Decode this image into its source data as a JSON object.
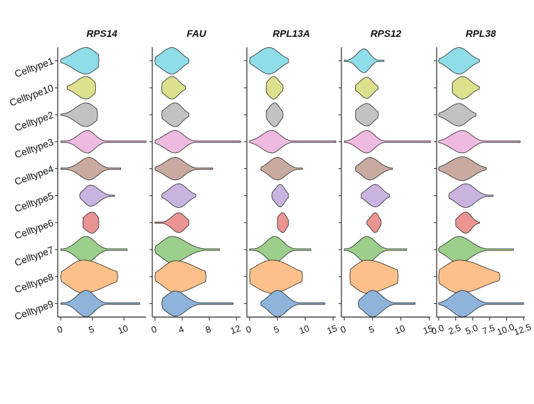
{
  "chart_data": {
    "type": "violin",
    "celltypes": [
      "Celltype1",
      "Celltype10",
      "Celltype2",
      "Celltype3",
      "Celltype4",
      "Celltype5",
      "Celltype6",
      "Celltype7",
      "Celltype8",
      "Celltype9"
    ],
    "colors": [
      "#8fdde8",
      "#dde08c",
      "#c2c2c2",
      "#eebae0",
      "#c9aaa0",
      "#c9b4e0",
      "#eb9494",
      "#9ccf8c",
      "#fdc08a",
      "#8fb4dc"
    ],
    "genes": [
      {
        "name": "RPS14",
        "xlim": [
          -0.5,
          13.5
        ],
        "ticks": [
          0,
          5,
          10
        ],
        "tick_labels": [
          "0",
          "5",
          "10"
        ],
        "violins": [
          {
            "min": 0,
            "max": 6,
            "mode": 4,
            "left": 2.0,
            "right": 1.6,
            "width": 1.0
          },
          {
            "min": 1,
            "max": 5.5,
            "mode": 4,
            "left": 1.5,
            "right": 1.2,
            "width": 0.85
          },
          {
            "min": 0,
            "max": 5.8,
            "mode": 4,
            "left": 1.6,
            "right": 1.4,
            "width": 0.9
          },
          {
            "min": 0,
            "max": 13.5,
            "mode": 4.2,
            "left": 1.4,
            "right": 1.2,
            "width": 0.85
          },
          {
            "min": 0,
            "max": 9.5,
            "mode": 4.5,
            "left": 1.5,
            "right": 1.3,
            "width": 0.85
          },
          {
            "min": 3,
            "max": 8.5,
            "mode": 4.7,
            "left": 1.0,
            "right": 1.3,
            "width": 0.8
          },
          {
            "min": 3.5,
            "max": 6,
            "mode": 5,
            "left": 1.2,
            "right": 0.8,
            "width": 0.8
          },
          {
            "min": 0,
            "max": 10.5,
            "mode": 4,
            "left": 1.5,
            "right": 1.4,
            "width": 1.0
          },
          {
            "min": 0,
            "max": 9,
            "mode": 3.5,
            "left": 2.2,
            "right": 3.5,
            "width": 1.25
          },
          {
            "min": 0,
            "max": 12.5,
            "mode": 4,
            "left": 1.4,
            "right": 1.3,
            "width": 1.0
          }
        ]
      },
      {
        "name": "FAU",
        "xlim": [
          -0.4,
          12.6
        ],
        "ticks": [
          0,
          4,
          8,
          12
        ],
        "tick_labels": [
          "0",
          "4",
          "8",
          "12"
        ],
        "violins": [
          {
            "min": 0,
            "max": 5,
            "mode": 2.5,
            "left": 1.5,
            "right": 1.3,
            "width": 1.0
          },
          {
            "min": 1,
            "max": 4.5,
            "mode": 2.5,
            "left": 1.1,
            "right": 1.0,
            "width": 0.85
          },
          {
            "min": 1,
            "max": 5,
            "mode": 3,
            "left": 1.3,
            "right": 1.0,
            "width": 0.9
          },
          {
            "min": 0,
            "max": 12.6,
            "mode": 3,
            "left": 1.5,
            "right": 1.2,
            "width": 0.85
          },
          {
            "min": 0,
            "max": 8.5,
            "mode": 3,
            "left": 1.5,
            "right": 1.3,
            "width": 0.85
          },
          {
            "min": 1,
            "max": 6,
            "mode": 3.5,
            "left": 1.3,
            "right": 1.2,
            "width": 0.9
          },
          {
            "min": 0,
            "max": 5,
            "mode": 3.5,
            "left": 1.0,
            "right": 0.9,
            "width": 0.75
          },
          {
            "min": 0,
            "max": 9.5,
            "mode": 2.5,
            "left": 1.5,
            "right": 2.0,
            "width": 1.0
          },
          {
            "min": 0,
            "max": 7.5,
            "mode": 3,
            "left": 1.8,
            "right": 3.0,
            "width": 1.2
          },
          {
            "min": 1,
            "max": 11.5,
            "mode": 3,
            "left": 1.4,
            "right": 1.5,
            "width": 0.95
          }
        ]
      },
      {
        "name": "RPL13A",
        "xlim": [
          -0.5,
          15.5
        ],
        "ticks": [
          0,
          5,
          10,
          15
        ],
        "tick_labels": [
          "0",
          "5",
          "10",
          "15"
        ],
        "violins": [
          {
            "min": 0,
            "max": 7,
            "mode": 3.5,
            "left": 2.0,
            "right": 1.8,
            "width": 1.0
          },
          {
            "min": 3,
            "max": 6,
            "mode": 4.3,
            "left": 1.0,
            "right": 1.0,
            "width": 0.85
          },
          {
            "min": 3,
            "max": 6,
            "mode": 4.5,
            "left": 1.0,
            "right": 0.9,
            "width": 0.9
          },
          {
            "min": 0,
            "max": 15.5,
            "mode": 4,
            "left": 1.8,
            "right": 1.5,
            "width": 0.85
          },
          {
            "min": 2,
            "max": 9.5,
            "mode": 5,
            "left": 1.5,
            "right": 1.5,
            "width": 0.85
          },
          {
            "min": 4,
            "max": 7,
            "mode": 5.5,
            "left": 0.9,
            "right": 0.8,
            "width": 0.85
          },
          {
            "min": 5,
            "max": 7,
            "mode": 6,
            "left": 0.9,
            "right": 0.6,
            "width": 0.75
          },
          {
            "min": 0,
            "max": 11,
            "mode": 4.5,
            "left": 1.5,
            "right": 1.5,
            "width": 1.0
          },
          {
            "min": 0,
            "max": 9.5,
            "mode": 4,
            "left": 3.0,
            "right": 3.5,
            "width": 1.25
          },
          {
            "min": 2,
            "max": 13.5,
            "mode": 5,
            "left": 1.5,
            "right": 1.6,
            "width": 1.0
          }
        ]
      },
      {
        "name": "RPS12",
        "xlim": [
          -0.5,
          15.2
        ],
        "ticks": [
          0,
          5,
          10,
          15
        ],
        "tick_labels": [
          "0",
          "5",
          "10",
          "15"
        ],
        "violins": [
          {
            "min": 0,
            "max": 7,
            "mode": 3.5,
            "left": 1.2,
            "right": 1.0,
            "width": 0.9
          },
          {
            "min": 2,
            "max": 6,
            "mode": 4,
            "left": 1.2,
            "right": 1.0,
            "width": 0.8
          },
          {
            "min": 2,
            "max": 6,
            "mode": 4,
            "left": 1.5,
            "right": 1.2,
            "width": 0.85
          },
          {
            "min": 0,
            "max": 15.2,
            "mode": 4,
            "left": 1.6,
            "right": 1.3,
            "width": 0.85
          },
          {
            "min": 2,
            "max": 8.5,
            "mode": 4.5,
            "left": 1.4,
            "right": 1.6,
            "width": 0.85
          },
          {
            "min": 3,
            "max": 8,
            "mode": 5.5,
            "left": 1.4,
            "right": 1.2,
            "width": 0.85
          },
          {
            "min": 4,
            "max": 6.5,
            "mode": 5.5,
            "left": 0.8,
            "right": 0.6,
            "width": 0.75
          },
          {
            "min": 0,
            "max": 11,
            "mode": 4,
            "left": 1.5,
            "right": 1.5,
            "width": 1.0
          },
          {
            "min": 1,
            "max": 9.5,
            "mode": 4,
            "left": 2.3,
            "right": 4.0,
            "width": 1.25
          },
          {
            "min": 2.5,
            "max": 12.5,
            "mode": 5,
            "left": 1.5,
            "right": 1.6,
            "width": 1.0
          }
        ]
      },
      {
        "name": "RPL38",
        "xlim": [
          -0.3,
          12.7
        ],
        "ticks": [
          0,
          2.5,
          5,
          7.5,
          10,
          12.5
        ],
        "tick_labels": [
          "0.0",
          "2.5",
          "5.0",
          "7.5",
          "10.0",
          "12.5"
        ],
        "violins": [
          {
            "min": 0,
            "max": 6,
            "mode": 3,
            "left": 1.5,
            "right": 1.4,
            "width": 1.0
          },
          {
            "min": 2,
            "max": 6,
            "mode": 3.5,
            "left": 1.2,
            "right": 1.2,
            "width": 0.85
          },
          {
            "min": 0,
            "max": 5.5,
            "mode": 3,
            "left": 1.5,
            "right": 1.2,
            "width": 0.85
          },
          {
            "min": 0,
            "max": 12,
            "mode": 3.5,
            "left": 1.6,
            "right": 1.3,
            "width": 0.85
          },
          {
            "min": 0,
            "max": 7,
            "mode": 3.5,
            "left": 1.8,
            "right": 1.6,
            "width": 0.9
          },
          {
            "min": 1.5,
            "max": 8,
            "mode": 4,
            "left": 1.4,
            "right": 1.3,
            "width": 0.9
          },
          {
            "min": 2.5,
            "max": 6,
            "mode": 4,
            "left": 1.0,
            "right": 0.8,
            "width": 0.8
          },
          {
            "min": 0,
            "max": 11,
            "mode": 3,
            "left": 1.6,
            "right": 1.7,
            "width": 1.0
          },
          {
            "min": 0,
            "max": 9,
            "mode": 3,
            "left": 2.2,
            "right": 3.5,
            "width": 1.25
          },
          {
            "min": 0,
            "max": 12.5,
            "mode": 3.5,
            "left": 1.5,
            "right": 1.5,
            "width": 1.0
          }
        ]
      }
    ]
  }
}
